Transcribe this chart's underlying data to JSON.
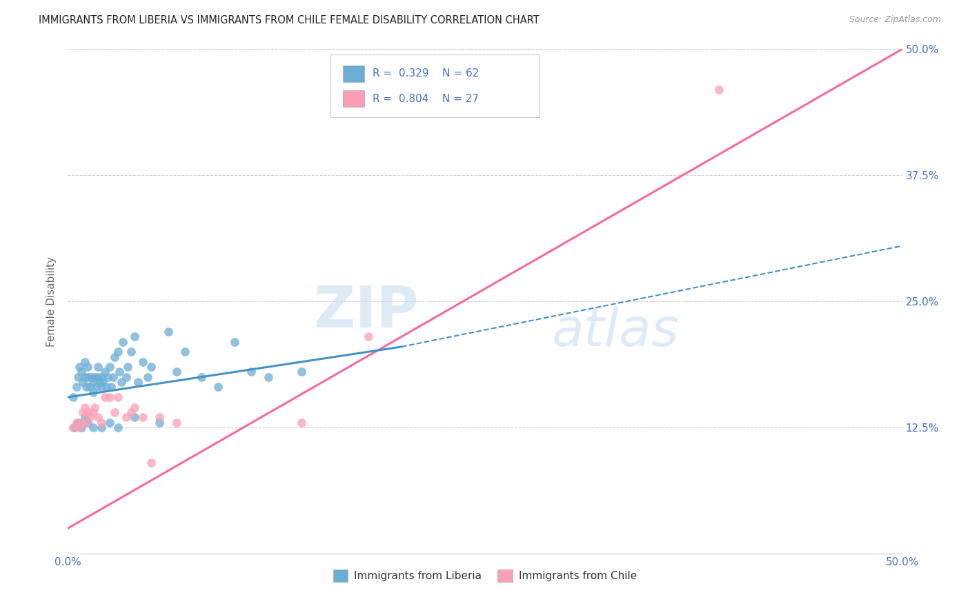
{
  "title": "IMMIGRANTS FROM LIBERIA VS IMMIGRANTS FROM CHILE FEMALE DISABILITY CORRELATION CHART",
  "source": "Source: ZipAtlas.com",
  "ylabel": "Female Disability",
  "xlim": [
    0.0,
    0.5
  ],
  "ylim": [
    0.0,
    0.5
  ],
  "yticks": [
    0.125,
    0.25,
    0.375,
    0.5
  ],
  "yticklabels_right": [
    "12.5%",
    "25.0%",
    "37.5%",
    "50.0%"
  ],
  "liberia_color": "#6baed6",
  "chile_color": "#fa9fb5",
  "liberia_line_color": "#4292c6",
  "chile_line_color": "#f768a1",
  "liberia_R": 0.329,
  "liberia_N": 62,
  "chile_R": 0.804,
  "chile_N": 27,
  "liberia_x": [
    0.003,
    0.005,
    0.006,
    0.007,
    0.008,
    0.009,
    0.01,
    0.01,
    0.011,
    0.012,
    0.012,
    0.013,
    0.014,
    0.015,
    0.015,
    0.016,
    0.017,
    0.018,
    0.018,
    0.019,
    0.02,
    0.02,
    0.021,
    0.022,
    0.023,
    0.024,
    0.025,
    0.026,
    0.027,
    0.028,
    0.03,
    0.031,
    0.032,
    0.033,
    0.035,
    0.036,
    0.038,
    0.04,
    0.042,
    0.045,
    0.048,
    0.05,
    0.055,
    0.06,
    0.065,
    0.07,
    0.08,
    0.09,
    0.1,
    0.11,
    0.12,
    0.14,
    0.004,
    0.006,
    0.008,
    0.01,
    0.012,
    0.015,
    0.02,
    0.025,
    0.03,
    0.04
  ],
  "liberia_y": [
    0.155,
    0.165,
    0.175,
    0.185,
    0.18,
    0.17,
    0.175,
    0.19,
    0.165,
    0.175,
    0.185,
    0.165,
    0.175,
    0.17,
    0.16,
    0.175,
    0.165,
    0.175,
    0.185,
    0.17,
    0.175,
    0.165,
    0.17,
    0.18,
    0.165,
    0.175,
    0.185,
    0.165,
    0.175,
    0.195,
    0.2,
    0.18,
    0.17,
    0.21,
    0.175,
    0.185,
    0.2,
    0.215,
    0.17,
    0.19,
    0.175,
    0.185,
    0.13,
    0.22,
    0.18,
    0.2,
    0.175,
    0.165,
    0.21,
    0.18,
    0.175,
    0.18,
    0.125,
    0.13,
    0.125,
    0.135,
    0.13,
    0.125,
    0.125,
    0.13,
    0.125,
    0.135
  ],
  "chile_x": [
    0.003,
    0.005,
    0.007,
    0.008,
    0.009,
    0.01,
    0.011,
    0.012,
    0.013,
    0.015,
    0.016,
    0.018,
    0.02,
    0.022,
    0.025,
    0.028,
    0.03,
    0.035,
    0.038,
    0.04,
    0.045,
    0.05,
    0.055,
    0.065,
    0.14,
    0.18,
    0.39
  ],
  "chile_y": [
    0.125,
    0.13,
    0.125,
    0.13,
    0.14,
    0.145,
    0.13,
    0.14,
    0.135,
    0.14,
    0.145,
    0.135,
    0.13,
    0.155,
    0.155,
    0.14,
    0.155,
    0.135,
    0.14,
    0.145,
    0.135,
    0.09,
    0.135,
    0.13,
    0.13,
    0.215,
    0.46
  ],
  "liberia_line_x0": 0.0,
  "liberia_line_x_solid_end": 0.2,
  "liberia_line_x1": 0.5,
  "liberia_line_y0": 0.155,
  "liberia_line_y_solid_end": 0.205,
  "liberia_line_y1": 0.305,
  "chile_line_x0": 0.0,
  "chile_line_x1": 0.5,
  "chile_line_y0": 0.025,
  "chile_line_y1": 0.5,
  "watermark_zip": "ZIP",
  "watermark_atlas": "atlas",
  "background_color": "#ffffff",
  "grid_color": "#d0d0d0"
}
